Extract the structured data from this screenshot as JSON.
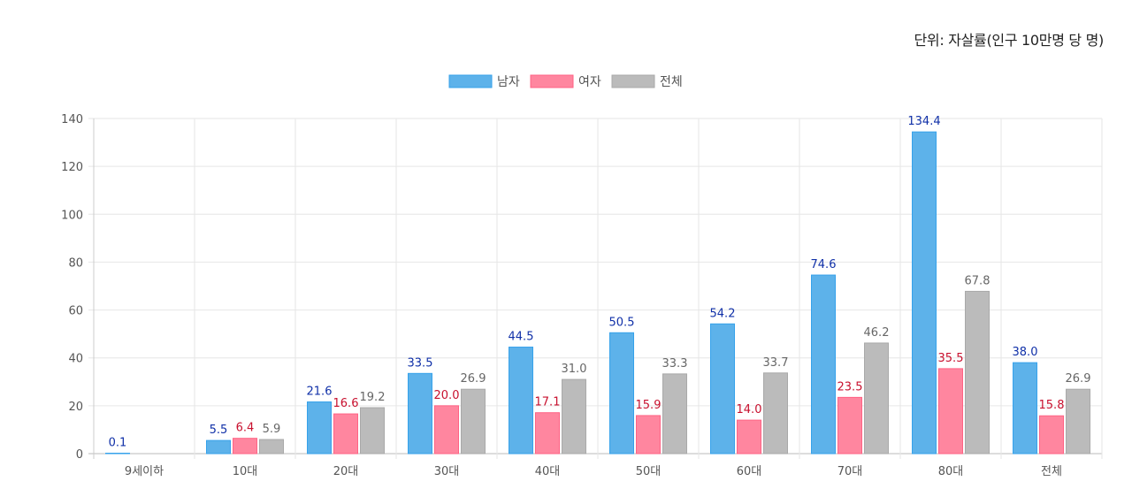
{
  "unit_note": "단위: 자살률(인구 10만명 당 명)",
  "colors": {
    "male_fill": "#5DB2EA",
    "male_stroke": "#36A2EB",
    "male_label": "#1030A8",
    "female_fill": "#FF869F",
    "female_stroke": "#FF6384",
    "female_label": "#C8102E",
    "total_fill": "#BBBBBB",
    "total_stroke": "#A9A9A9",
    "total_label": "#666666",
    "grid": "#E6E6E6",
    "axis_text": "#555555"
  },
  "chart_data": {
    "type": "bar",
    "categories": [
      "9세이하",
      "10대",
      "20대",
      "30대",
      "40대",
      "50대",
      "60대",
      "70대",
      "80대",
      "전체"
    ],
    "series": [
      {
        "name": "남자",
        "key": "male",
        "values": [
          0.1,
          5.5,
          21.6,
          33.5,
          44.5,
          50.5,
          54.2,
          74.6,
          134.4,
          38.0
        ]
      },
      {
        "name": "여자",
        "key": "female",
        "values": [
          null,
          6.4,
          16.6,
          20.0,
          17.1,
          15.9,
          14.0,
          23.5,
          35.5,
          15.8
        ]
      },
      {
        "name": "전체",
        "key": "total",
        "values": [
          null,
          5.9,
          19.2,
          26.9,
          31.0,
          33.3,
          33.7,
          46.2,
          67.8,
          26.9
        ]
      }
    ],
    "ylim": [
      0,
      140
    ],
    "yticks": [
      0,
      20,
      40,
      60,
      80,
      100,
      120,
      140
    ],
    "grid": true,
    "legend": "top-center"
  }
}
